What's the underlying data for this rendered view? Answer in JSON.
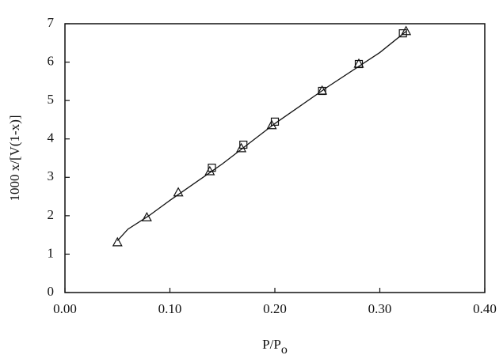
{
  "chart_data": {
    "type": "scatter",
    "xlabel": "P/P",
    "xlabel_sub": "o",
    "ylabel": "1000 x/[V(1-x)]",
    "xlim": [
      0,
      0.4
    ],
    "ylim": [
      0,
      7
    ],
    "xticks": [
      {
        "value": 0,
        "label": "0.00"
      },
      {
        "value": 0.1,
        "label": "0.10"
      },
      {
        "value": 0.2,
        "label": "0.20"
      },
      {
        "value": 0.3,
        "label": "0.30"
      },
      {
        "value": 0.4,
        "label": "0.40"
      }
    ],
    "yticks": [
      0,
      1,
      2,
      3,
      4,
      5,
      6,
      7
    ],
    "series": [
      {
        "marker": "triangle",
        "color": "#111111",
        "x": [
          0.05,
          0.078,
          0.108,
          0.138,
          0.168,
          0.197,
          0.245,
          0.28,
          0.325
        ],
        "values": [
          1.3,
          1.95,
          2.6,
          3.15,
          3.75,
          4.35,
          5.25,
          5.95,
          6.8
        ]
      },
      {
        "marker": "square",
        "color": "#111111",
        "x": [
          0.14,
          0.17,
          0.2,
          0.245,
          0.28,
          0.322
        ],
        "values": [
          3.25,
          3.85,
          4.45,
          5.25,
          5.95,
          6.75
        ]
      },
      {
        "marker": "line",
        "color": "#111111",
        "x": [
          0.05,
          0.06,
          0.08,
          0.1,
          0.15,
          0.2,
          0.25,
          0.3,
          0.325
        ],
        "values": [
          1.35,
          1.65,
          2.0,
          2.4,
          3.35,
          4.4,
          5.35,
          6.25,
          6.8
        ]
      }
    ]
  }
}
